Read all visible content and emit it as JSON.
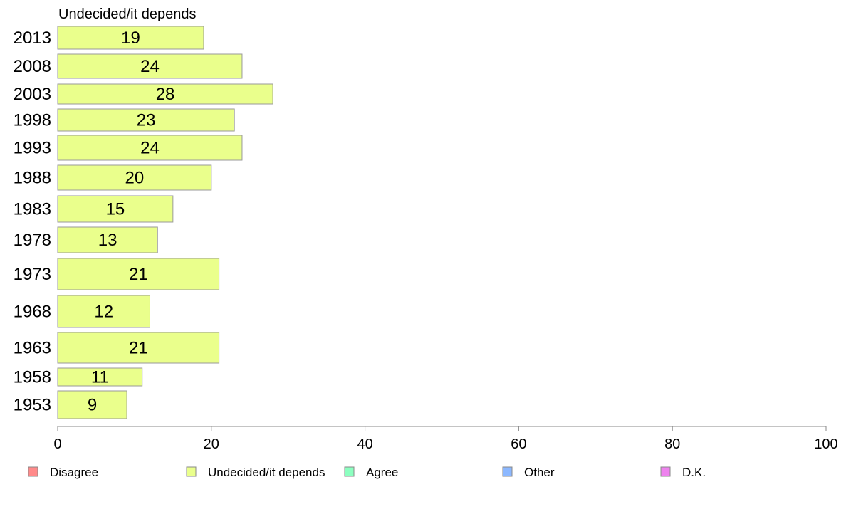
{
  "chart_data": {
    "type": "bar",
    "orientation": "horizontal",
    "title": "Undecided/it depends",
    "categories": [
      "2013",
      "2008",
      "2003",
      "1998",
      "1993",
      "1988",
      "1983",
      "1978",
      "1973",
      "1968",
      "1963",
      "1958",
      "1953"
    ],
    "series": [
      {
        "name": "Undecided/it depends",
        "color": "#eaff8c",
        "values": [
          19,
          24,
          28,
          23,
          24,
          20,
          15,
          13,
          21,
          12,
          21,
          11,
          9
        ]
      }
    ],
    "xlim": [
      0,
      100
    ],
    "xticks": [
      "0",
      "20",
      "40",
      "60",
      "80",
      "100"
    ],
    "grid": false,
    "legend": {
      "placement": "bottom",
      "entries": [
        {
          "label": "Disagree",
          "color": "#ff8a8a"
        },
        {
          "label": "Undecided/it depends",
          "color": "#eaff8c"
        },
        {
          "label": "Agree",
          "color": "#8cffc0"
        },
        {
          "label": "Other",
          "color": "#8cb8ff"
        },
        {
          "label": "D.K.",
          "color": "#ee82ee"
        }
      ]
    }
  }
}
